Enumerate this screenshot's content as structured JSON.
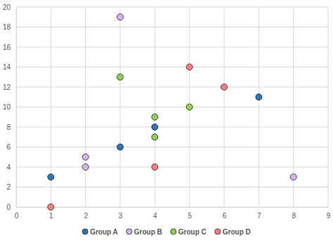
{
  "chart_data": {
    "type": "scatter",
    "series": [
      {
        "name": "Group A",
        "color": "#2e75b6",
        "marker": "circle",
        "x": [
          1,
          3,
          4,
          7
        ],
        "values": [
          3,
          6,
          8,
          11
        ]
      },
      {
        "name": "Group B",
        "color": "#d9b3f0",
        "marker": "circle",
        "x": [
          3,
          2,
          2,
          8
        ],
        "values": [
          19,
          5,
          4,
          3
        ]
      },
      {
        "name": "Group C",
        "color": "#92d050",
        "marker": "circle",
        "x": [
          3,
          4,
          4,
          5
        ],
        "values": [
          13,
          9,
          7,
          10
        ]
      },
      {
        "name": "Group D",
        "color": "#ff7c80",
        "marker": "circle",
        "x": [
          1,
          5,
          6,
          4
        ],
        "values": [
          0,
          14,
          12,
          4
        ]
      }
    ],
    "xlim": [
      0,
      9
    ],
    "xticks": [
      0,
      1,
      2,
      3,
      4,
      5,
      6,
      7,
      8,
      9
    ],
    "ylim": [
      0,
      20
    ],
    "yticks": [
      0,
      2,
      4,
      6,
      8,
      10,
      12,
      14,
      16,
      18,
      20
    ],
    "grid": true,
    "legend": "bottom"
  }
}
